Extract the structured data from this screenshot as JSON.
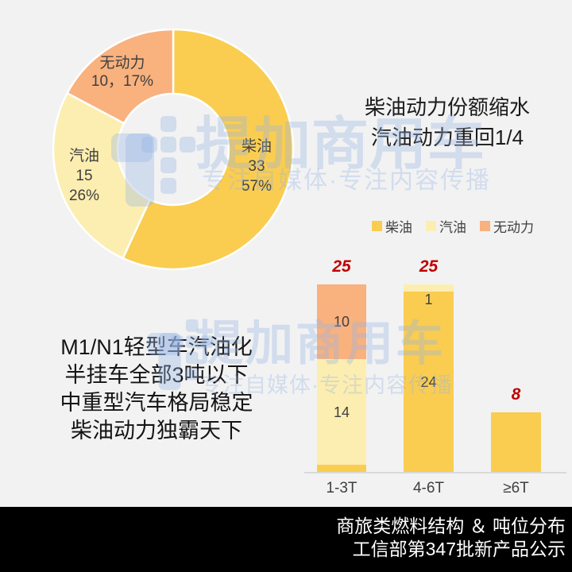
{
  "page": {
    "background": "#F2F2F2"
  },
  "headline": {
    "line1": "柴油动力份额缩水",
    "line2": "汽油动力重回1/4"
  },
  "left_note": {
    "line1": "M1/N1轻型车汽油化",
    "line2": "半挂车全部3吨以下",
    "line3": "中重型汽车格局稳定",
    "line4": "柴油动力独霸天下"
  },
  "legend": {
    "items": [
      {
        "label": "柴油",
        "color": "#FACD51"
      },
      {
        "label": "汽油",
        "color": "#FCEEB0"
      },
      {
        "label": "无动力",
        "color": "#F9B17E"
      }
    ]
  },
  "watermark": {
    "brand": "提加商用车",
    "tagline": "专注自媒体·专注内容传播",
    "color": "rgba(150,180,228,0.35)"
  },
  "footer": {
    "line1": "商旅类燃料结构 ＆ 吨位分布",
    "line2": "工信部第347批新产品公示"
  },
  "chart_data": [
    {
      "type": "pie",
      "donut": true,
      "title": "",
      "labels": [
        "柴油",
        "汽油",
        "无动力"
      ],
      "values": [
        33,
        15,
        10
      ],
      "percent_labels": [
        "57%",
        "26%",
        "17%"
      ],
      "colors": [
        "#FACD51",
        "#FCEEB0",
        "#F9B17E"
      ],
      "start_angle_deg": 0,
      "direction": "clockwise",
      "label_lines": {
        "diesel": [
          "柴油",
          "33",
          "57%"
        ],
        "gasoline": [
          "汽油",
          "15",
          "26%"
        ],
        "nopower": [
          "无动力",
          "10，17%"
        ]
      }
    },
    {
      "type": "bar",
      "stacked": true,
      "title": "",
      "categories": [
        "1-3T",
        "4-6T",
        "≥6T"
      ],
      "series": [
        {
          "name": "柴油",
          "color": "#FACD51",
          "values": [
            1,
            24,
            8
          ]
        },
        {
          "name": "汽油",
          "color": "#FCEEB0",
          "values": [
            14,
            1,
            0
          ]
        },
        {
          "name": "无动力",
          "color": "#F9B17E",
          "values": [
            10,
            0,
            0
          ]
        }
      ],
      "totals": [
        25,
        25,
        8
      ],
      "total_color": "#C00000",
      "show_segment_labels": [
        true,
        true,
        false
      ],
      "ylim": [
        0,
        25
      ],
      "axis_color": "#D9D9D9",
      "grid": false,
      "legend_position": "top"
    }
  ]
}
